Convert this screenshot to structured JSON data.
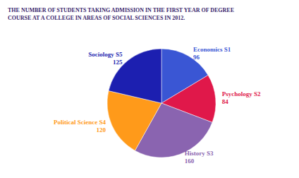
{
  "chart_data": {
    "type": "pie",
    "title": "THE NUMBER OF STUDENTS TAKING ADMISSION IN THE FIRST YEAR OF DEGREE COURSE AT A COLLEGE IN AREAS OF SOCIAL SCIENCES IN 2012.",
    "categories": [
      "Economics S1",
      "Psychology S2",
      "History S3",
      "Political Science S4",
      "Sociology S5"
    ],
    "values": [
      96,
      84,
      160,
      120,
      125
    ],
    "colors": [
      "#3a56d4",
      "#e0184a",
      "#8a64b0",
      "#ff9a1a",
      "#1c1fb0"
    ],
    "data_labels": true
  }
}
